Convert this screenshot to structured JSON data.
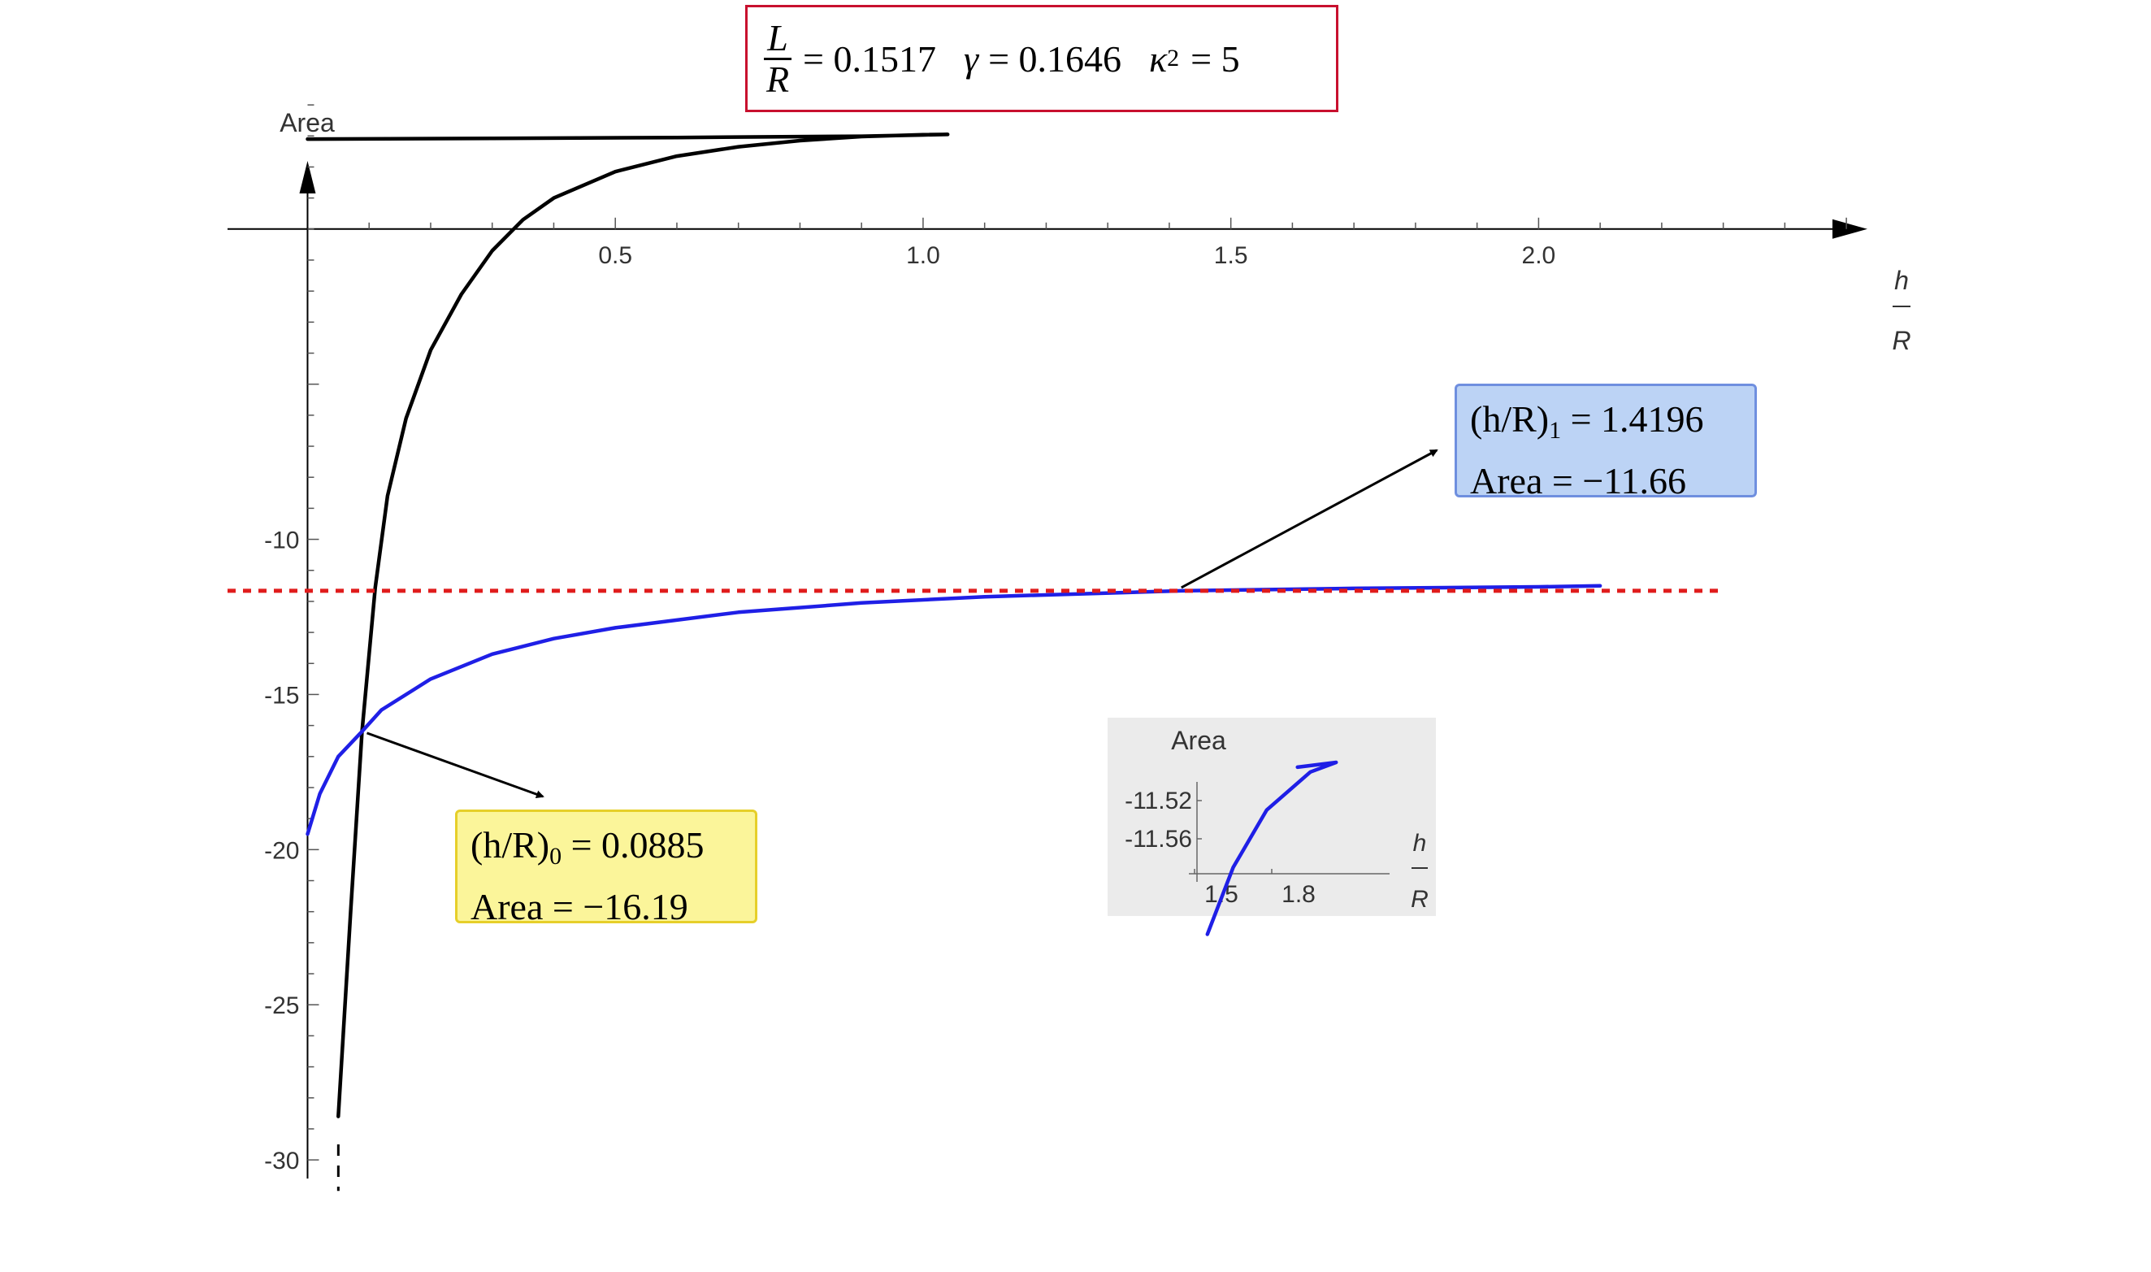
{
  "header": {
    "frac_num": "L",
    "frac_den": "R",
    "eq1": "= 0.1517",
    "gamma": "γ",
    "eq2": "= 0.1646",
    "kappa": "κ",
    "kappa_exp": "2",
    "eq3": "= 5"
  },
  "annotations": {
    "blue": {
      "line1_pre": "(h/R)",
      "line1_sub": "1",
      "line1_post": " = 1.4196",
      "line2": "Area = −11.66"
    },
    "yellow": {
      "line1_pre": "(h/R)",
      "line1_sub": "0",
      "line1_post": " = 0.0885",
      "line2": "Area = −16.19"
    }
  },
  "colors": {
    "black_curve": "#000000",
    "blue_curve": "#1f1fe6",
    "reference_line": "#e01c1c",
    "inset_bg": "#ebebeb"
  },
  "chart_data": [
    {
      "type": "line",
      "ylabel": "Area",
      "xlabel_num": "h",
      "xlabel_den": "R",
      "xlim": [
        -0.13,
        2.55
      ],
      "ylim": [
        -30.6,
        4.5
      ],
      "x_ticks": [
        0.5,
        1.0,
        1.5,
        2.0
      ],
      "x_tick_labels": [
        "0.5",
        "1.0",
        "1.5",
        "2.0"
      ],
      "y_ticks": [
        -10,
        -15,
        -20,
        -25,
        -30
      ],
      "y_tick_labels": [
        "-10",
        "-15",
        "-20",
        "-25",
        "-30"
      ],
      "grid": false,
      "series": [
        {
          "color": "#000000",
          "points": [
            [
              0.05,
              -28.6
            ],
            [
              0.07,
              -22.0
            ],
            [
              0.0885,
              -16.19
            ],
            [
              0.11,
              -11.55
            ],
            [
              0.13,
              -8.6
            ],
            [
              0.16,
              -6.1
            ],
            [
              0.2,
              -3.9
            ],
            [
              0.25,
              -2.1
            ],
            [
              0.3,
              -0.7
            ],
            [
              0.35,
              0.3
            ],
            [
              0.4,
              1.0
            ],
            [
              0.5,
              1.85
            ],
            [
              0.6,
              2.35
            ],
            [
              0.7,
              2.65
            ],
            [
              0.8,
              2.85
            ],
            [
              0.9,
              2.98
            ],
            [
              1.0,
              3.04
            ],
            [
              1.04,
              3.05
            ],
            [
              0.9,
              2.99
            ],
            [
              0.6,
              2.95
            ],
            [
              0.3,
              2.92
            ],
            [
              0.0,
              2.9
            ]
          ]
        },
        {
          "color": "#1f1fe6",
          "points": [
            [
              0.0,
              -19.5
            ],
            [
              0.02,
              -18.2
            ],
            [
              0.05,
              -17.0
            ],
            [
              0.0885,
              -16.19
            ],
            [
              0.12,
              -15.5
            ],
            [
              0.2,
              -14.5
            ],
            [
              0.3,
              -13.7
            ],
            [
              0.4,
              -13.2
            ],
            [
              0.5,
              -12.85
            ],
            [
              0.7,
              -12.35
            ],
            [
              0.9,
              -12.05
            ],
            [
              1.1,
              -11.85
            ],
            [
              1.4196,
              -11.66
            ],
            [
              1.7,
              -11.58
            ],
            [
              2.0,
              -11.53
            ],
            [
              2.1,
              -11.5
            ]
          ]
        },
        {
          "color": "#e01c1c",
          "style": "dashed",
          "points": [
            [
              -0.13,
              -11.66
            ],
            [
              2.3,
              -11.66
            ]
          ]
        }
      ],
      "truncation_marks": {
        "x": 0.05,
        "y_from": -29.5,
        "y_to": -31.0
      }
    },
    {
      "type": "line",
      "inset": true,
      "ylabel": "Area",
      "xlabel_num": "h",
      "xlabel_den": "R",
      "x_ticks": [
        1.5,
        1.8
      ],
      "x_tick_labels": [
        "1.5",
        "1.8"
      ],
      "y_ticks": [
        -11.52,
        -11.56
      ],
      "y_tick_labels": [
        "-11.52",
        "-11.56"
      ],
      "series": [
        {
          "color": "#1f1fe6",
          "points": [
            [
              1.55,
              -11.66
            ],
            [
              1.65,
              -11.59
            ],
            [
              1.78,
              -11.53
            ],
            [
              1.95,
              -11.49
            ],
            [
              2.05,
              -11.48
            ],
            [
              1.9,
              -11.485
            ]
          ]
        }
      ]
    }
  ]
}
